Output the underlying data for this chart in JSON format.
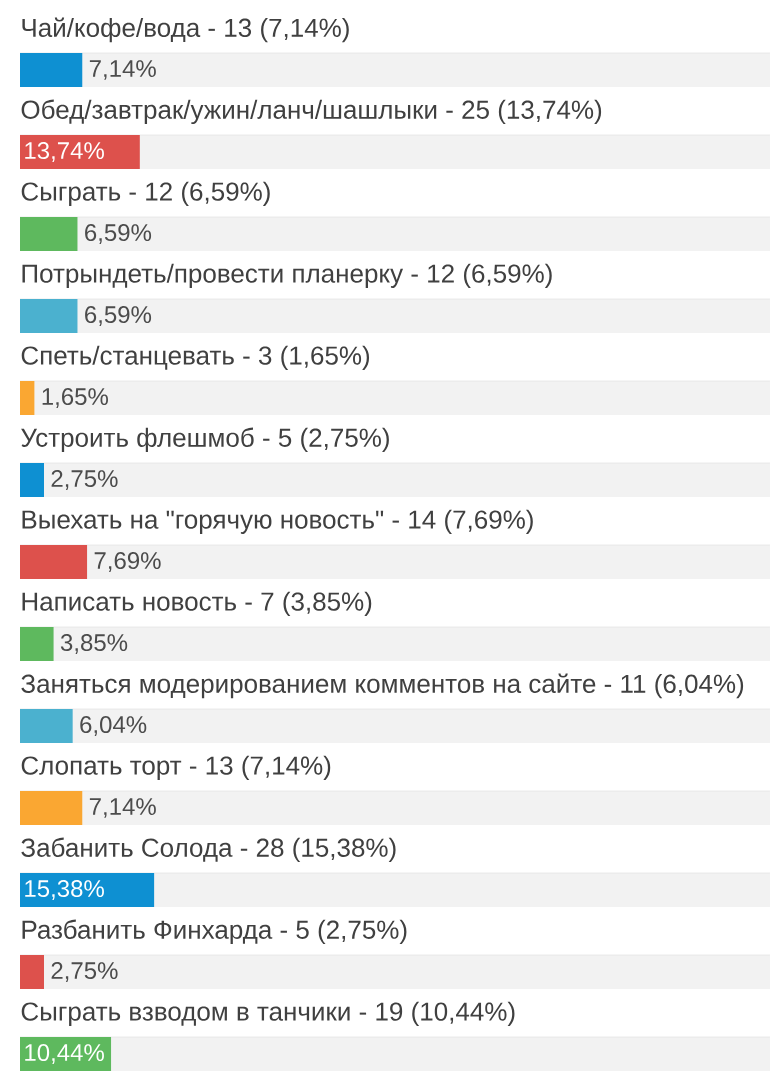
{
  "chart_data": {
    "type": "bar",
    "orientation": "horizontal",
    "categories": [
      "Чай/кофе/вода - 13 (7,14%)",
      "Обед/завтрак/ужин/ланч/шашлыки - 25 (13,74%)",
      "Сыграть - 12 (6,59%)",
      "Потрындеть/провести планерку - 12 (6,59%)",
      "Спеть/станцевать - 3 (1,65%)",
      "Устроить флешмоб - 5 (2,75%)",
      "Выехать на \"горячую новость\" - 14 (7,69%)",
      "Написать новость - 7 (3,85%)",
      "Заняться модерированием комментов на сайте - 11 (6,04%)",
      "Слопать торт - 13 (7,14%)",
      "Забанить Солода - 28 (15,38%)",
      "Разбанить Финхарда - 5 (2,75%)",
      "Сыграть взводом в танчики - 19 (10,44%)"
    ],
    "values": [
      7.14,
      13.74,
      6.59,
      6.59,
      1.65,
      2.75,
      7.69,
      3.85,
      6.04,
      7.14,
      15.38,
      2.75,
      10.44
    ],
    "value_labels": [
      "7,14%",
      "13,74%",
      "6,59%",
      "6,59%",
      "1,65%",
      "2,75%",
      "7,69%",
      "3,85%",
      "6,04%",
      "7,14%",
      "15,38%",
      "2,75%",
      "10,44%"
    ],
    "colors": [
      "#0e90d2",
      "#dd514c",
      "#5eb95e",
      "#4bb1cf",
      "#faa732",
      "#0e90d2",
      "#dd514c",
      "#5eb95e",
      "#4bb1cf",
      "#faa732",
      "#0e90d2",
      "#dd514c",
      "#5eb95e"
    ],
    "xlim": [
      0,
      86
    ]
  }
}
